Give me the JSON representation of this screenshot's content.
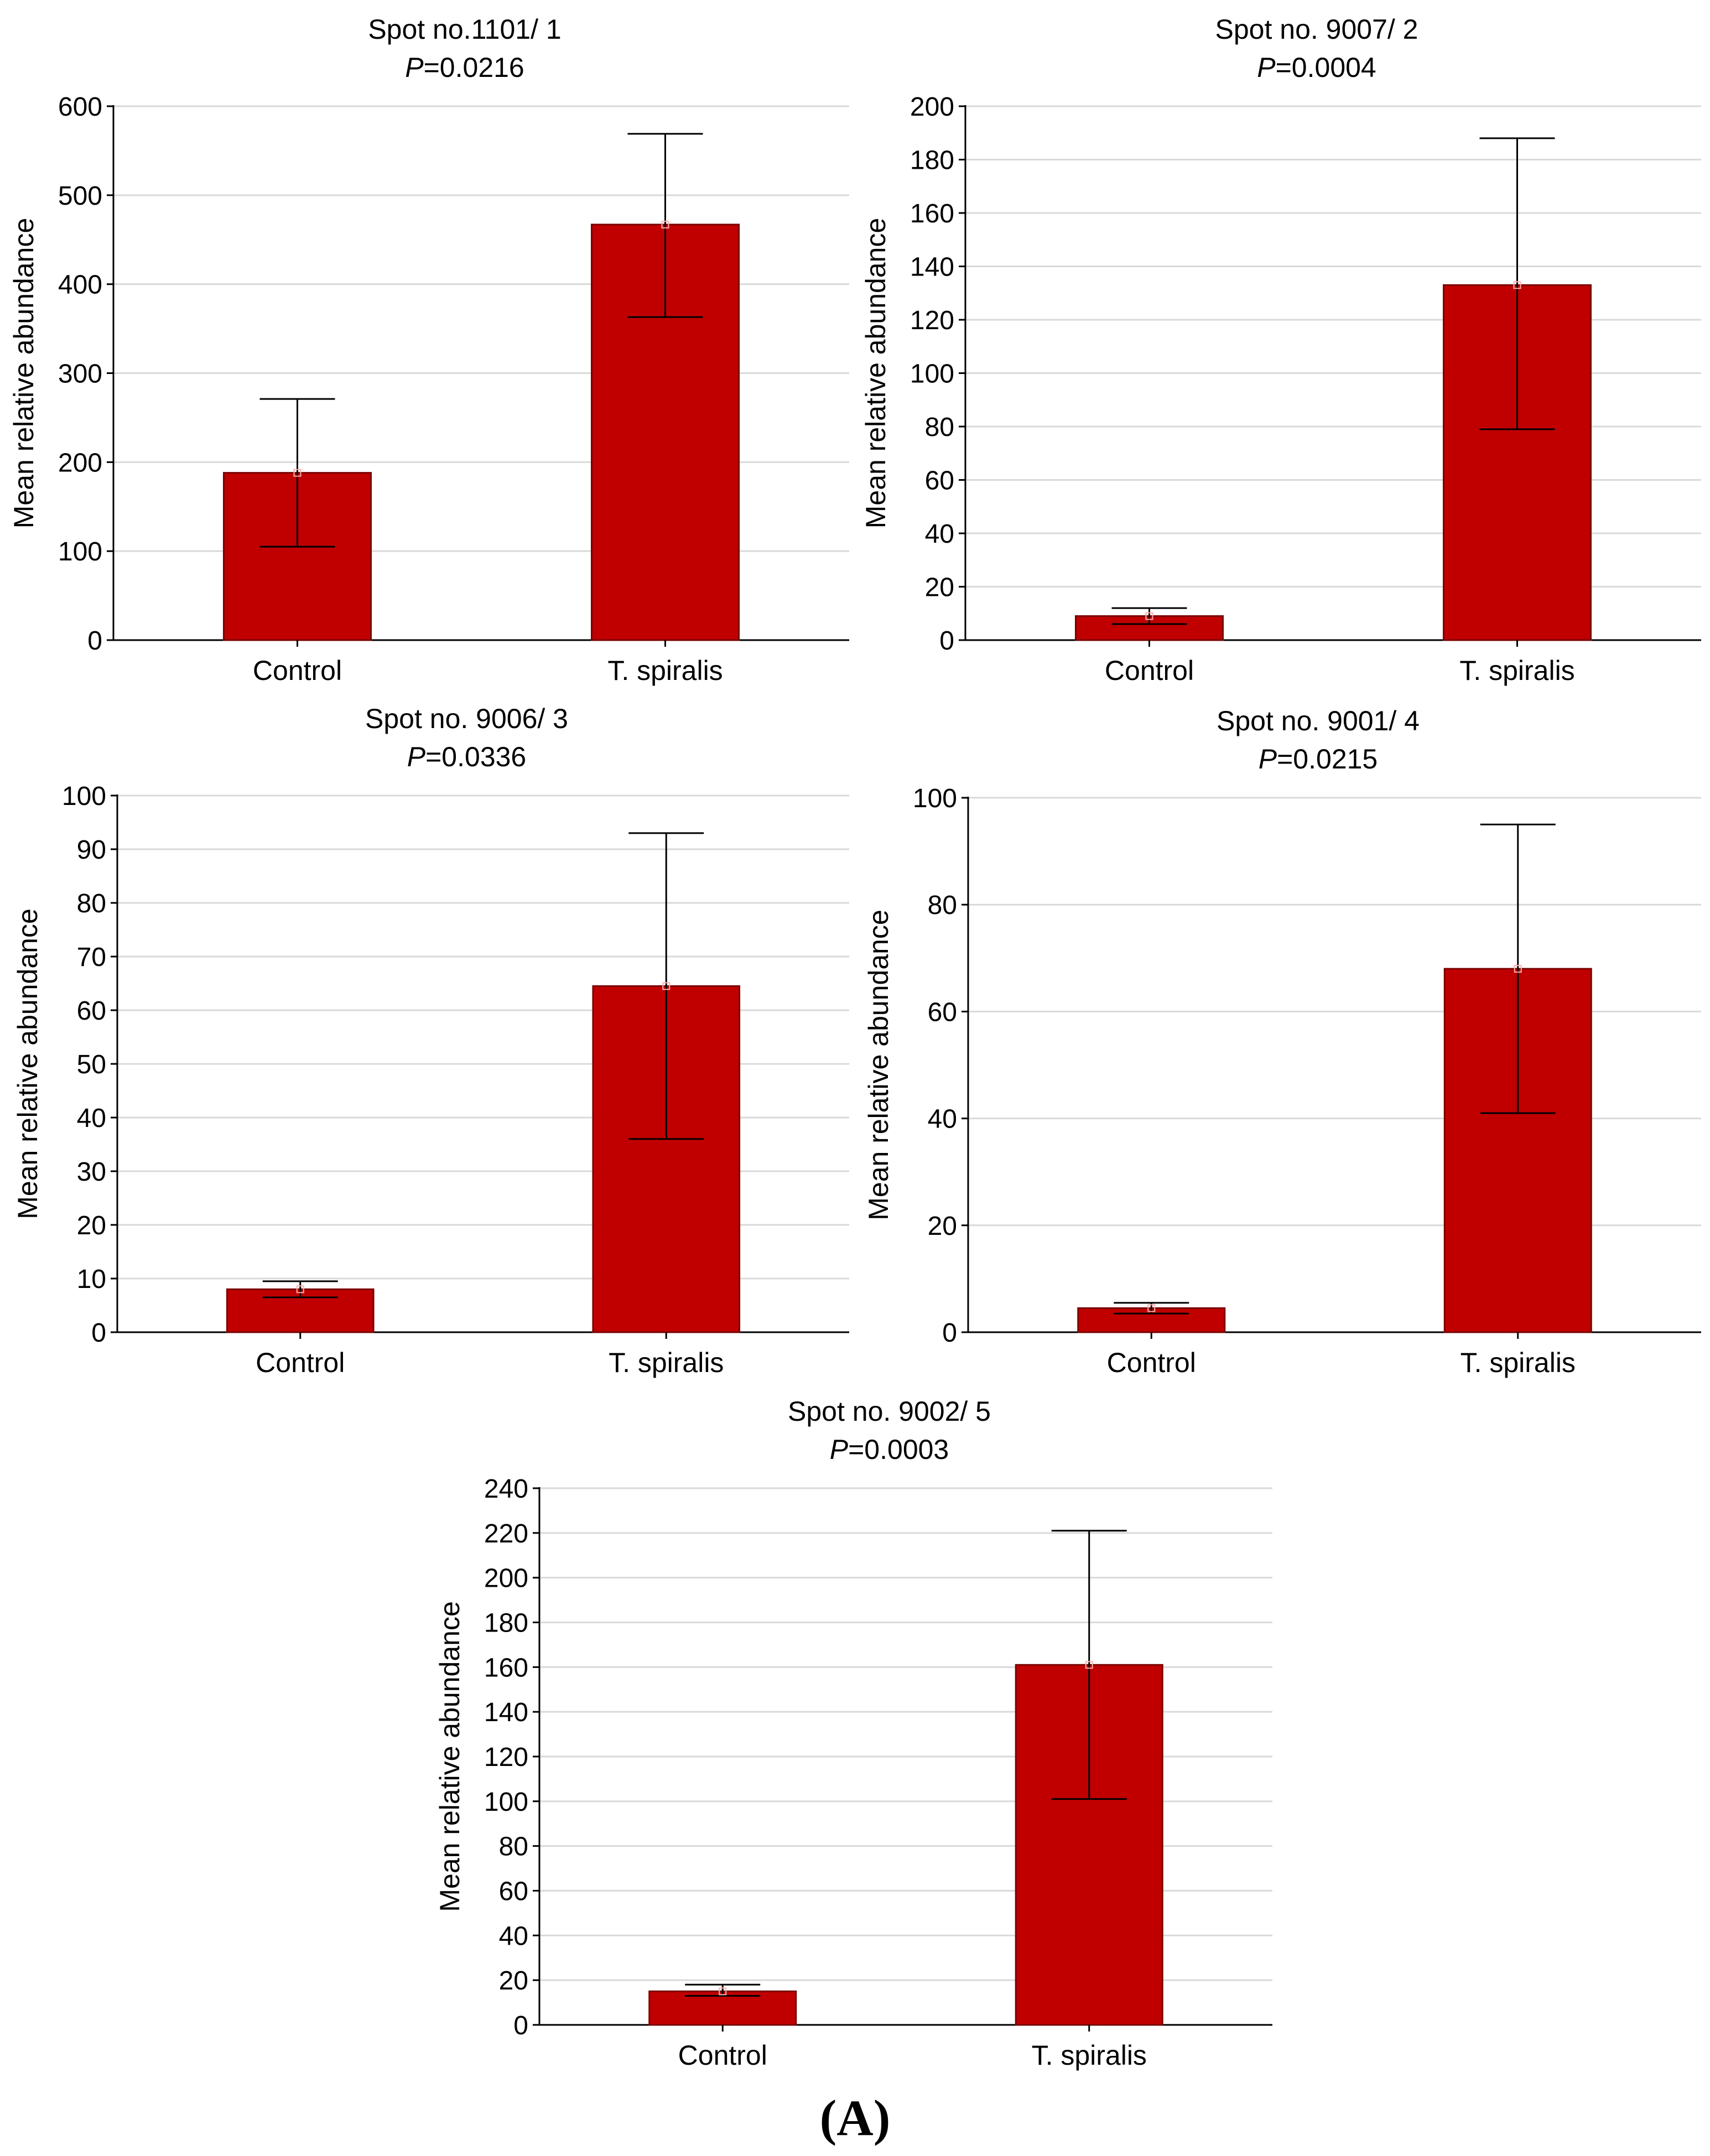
{
  "figure_label": "(A)",
  "colors": {
    "bar_fill": "#c00000",
    "bar_edge": "#7a0000",
    "axis": "#000000",
    "grid": "#d9d9d9",
    "text": "#000000"
  },
  "chart_data": [
    {
      "type": "bar",
      "title": "Spot no.1101/ 1",
      "p_prefix": "P",
      "p_suffix": "=0.0216",
      "xlabel": "",
      "ylabel": "Mean relative abundance",
      "categories": [
        "Control",
        "T. spiralis"
      ],
      "values": [
        188,
        467
      ],
      "error_low": [
        105,
        363
      ],
      "error_high": [
        271,
        569
      ],
      "ylim": [
        0,
        600
      ],
      "yticks": [
        0,
        100,
        200,
        300,
        400,
        500,
        600
      ],
      "grid": true
    },
    {
      "type": "bar",
      "title": "Spot no. 9007/ 2",
      "p_prefix": "P",
      "p_suffix": "=0.0004",
      "xlabel": "",
      "ylabel": "Mean relative abundance",
      "categories": [
        "Control",
        "T. spiralis"
      ],
      "values": [
        9,
        133
      ],
      "error_low": [
        6,
        79
      ],
      "error_high": [
        12,
        188
      ],
      "ylim": [
        0,
        200
      ],
      "yticks": [
        0,
        20,
        40,
        60,
        80,
        100,
        120,
        140,
        160,
        180,
        200
      ],
      "grid": true
    },
    {
      "type": "bar",
      "title": "Spot no. 9006/ 3",
      "p_prefix": "P",
      "p_suffix": "=0.0336",
      "xlabel": "",
      "ylabel": "Mean relative abundance",
      "categories": [
        "Control",
        "T. spiralis"
      ],
      "values": [
        8,
        64.5
      ],
      "error_low": [
        6.5,
        36
      ],
      "error_high": [
        9.5,
        93
      ],
      "ylim": [
        0,
        100
      ],
      "yticks": [
        0,
        10,
        20,
        30,
        40,
        50,
        60,
        70,
        80,
        90,
        100
      ],
      "grid": true
    },
    {
      "type": "bar",
      "title": "Spot no. 9001/ 4",
      "p_prefix": "P",
      "p_suffix": "=0.0215",
      "xlabel": "",
      "ylabel": "Mean relative abundance",
      "categories": [
        "Control",
        "T. spiralis"
      ],
      "values": [
        4.5,
        68
      ],
      "error_low": [
        3.5,
        41
      ],
      "error_high": [
        5.5,
        95
      ],
      "ylim": [
        0,
        100
      ],
      "yticks": [
        0,
        20,
        40,
        60,
        80,
        100
      ],
      "grid": true
    },
    {
      "type": "bar",
      "title": "Spot no. 9002/ 5",
      "p_prefix": "P",
      "p_suffix": "=0.0003",
      "xlabel": "",
      "ylabel": "Mean relative abundance",
      "categories": [
        "Control",
        "T. spiralis"
      ],
      "values": [
        15,
        161
      ],
      "error_low": [
        13,
        101
      ],
      "error_high": [
        18,
        221
      ],
      "ylim": [
        0,
        240
      ],
      "yticks": [
        0,
        20,
        40,
        60,
        80,
        100,
        120,
        140,
        160,
        180,
        200,
        220,
        240
      ],
      "grid": true
    }
  ]
}
